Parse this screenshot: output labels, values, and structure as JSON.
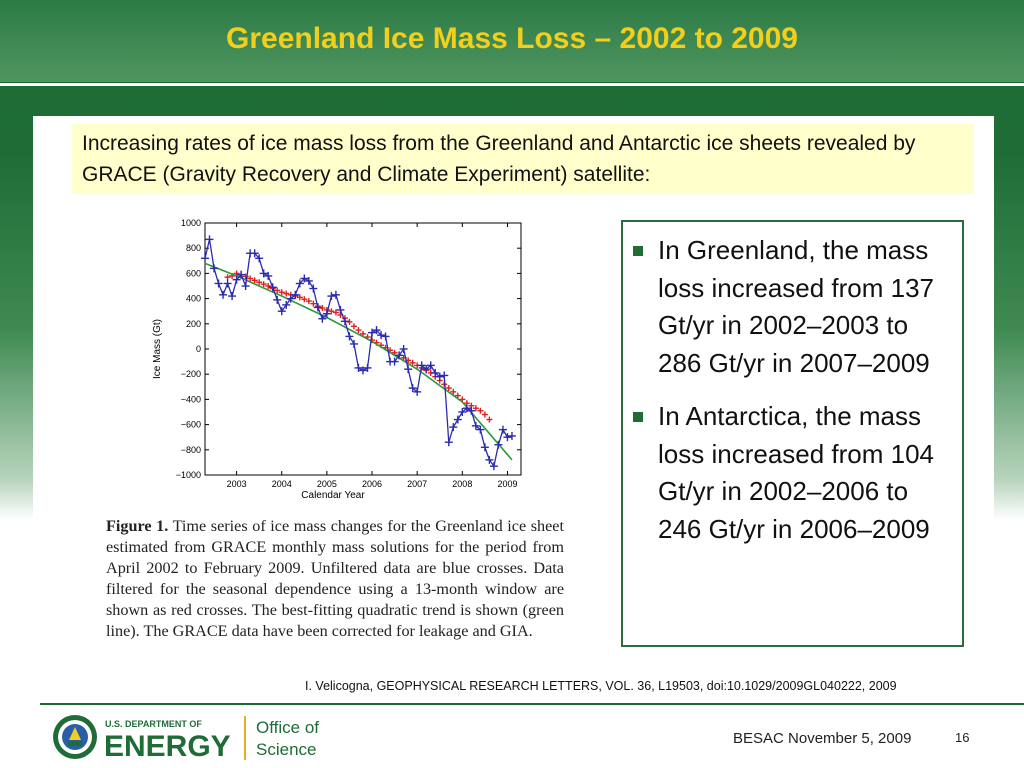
{
  "slide": {
    "title": "Greenland Ice Mass Loss – 2002 to 2009",
    "intro": "Increasing rates of ice mass loss from the Greenland and Antarctic ice sheets revealed by GRACE (Gravity Recovery and Climate Experiment) satellite:",
    "bullets": [
      "In Greenland, the mass loss increased from 137 Gt/yr in 2002–2003 to 286 Gt/yr in 2007–2009",
      "In Antarctica, the mass loss increased from 104 Gt/yr in 2002–2006 to 246 Gt/yr in 2006–2009"
    ],
    "caption_label": "Figure 1.",
    "caption_text": "Time series of ice mass changes for the Greenland ice sheet estimated from GRACE monthly mass solutions for the period from April 2002 to February 2009. Unfiltered data are blue crosses. Data filtered for the seasonal dependence using a 13-month window are shown as red crosses. The best-fitting quadratic trend is shown (green line). The GRACE data have been corrected for leakage and GIA.",
    "citation": "I. Velicogna, GEOPHYSICAL RESEARCH LETTERS, VOL. 36, L19503, doi:10.1029/2009GL040222, 2009"
  },
  "footer": {
    "logo_dept": "U.S. DEPARTMENT OF",
    "logo_energy": "ENERGY",
    "logo_office1": "Office of",
    "logo_office2": "Science",
    "date": "BESAC November 5, 2009",
    "page": "16"
  },
  "colors": {
    "green": "#1f6c37",
    "title_yellow": "#f2cf1c",
    "unfiltered": "#2b2bb0",
    "filtered": "#e02020",
    "trend": "#2a9a3a"
  },
  "chart_data": {
    "type": "line",
    "xlabel": "Calendar Year",
    "ylabel": "Ice Mass (Gt)",
    "xlim": [
      2002.3,
      2009.3
    ],
    "ylim": [
      -1000,
      1000
    ],
    "xticks": [
      2003,
      2004,
      2005,
      2006,
      2007,
      2008,
      2009
    ],
    "yticks": [
      1000,
      800,
      600,
      400,
      200,
      0,
      -200,
      -400,
      -600,
      -800,
      -1000
    ],
    "ytick_labels": [
      "1000",
      "800",
      "600",
      "400",
      "200",
      "0",
      "−200",
      "−400",
      "−600",
      "−800",
      "−1000"
    ],
    "series": [
      {
        "style": "blue-crosses",
        "x": [
          2002.3,
          2002.4,
          2002.5,
          2002.6,
          2002.7,
          2002.8,
          2002.9,
          2003.0,
          2003.1,
          2003.2,
          2003.3,
          2003.4,
          2003.5,
          2003.6,
          2003.7,
          2003.8,
          2003.9,
          2004.0,
          2004.1,
          2004.2,
          2004.3,
          2004.4,
          2004.5,
          2004.6,
          2004.7,
          2004.8,
          2004.9,
          2005.0,
          2005.1,
          2005.2,
          2005.3,
          2005.4,
          2005.5,
          2005.6,
          2005.7,
          2005.8,
          2005.9,
          2006.0,
          2006.1,
          2006.2,
          2006.3,
          2006.4,
          2006.5,
          2006.6,
          2006.7,
          2006.8,
          2006.9,
          2007.0,
          2007.1,
          2007.2,
          2007.3,
          2007.4,
          2007.5,
          2007.6,
          2007.7,
          2007.8,
          2007.9,
          2008.0,
          2008.1,
          2008.2,
          2008.3,
          2008.4,
          2008.5,
          2008.6,
          2008.7,
          2008.8,
          2008.9,
          2009.0,
          2009.1
        ],
        "values": [
          720,
          870,
          640,
          520,
          430,
          520,
          420,
          550,
          590,
          500,
          760,
          760,
          720,
          600,
          580,
          490,
          390,
          300,
          350,
          400,
          430,
          520,
          560,
          540,
          480,
          330,
          240,
          280,
          420,
          430,
          310,
          220,
          100,
          40,
          -150,
          -170,
          -150,
          130,
          150,
          110,
          100,
          -100,
          -100,
          -50,
          0,
          -160,
          -310,
          -340,
          -130,
          -160,
          -130,
          -190,
          -220,
          -210,
          -740,
          -620,
          -560,
          -500,
          -470,
          -490,
          -610,
          -640,
          -780,
          -880,
          -930,
          -760,
          -640,
          -700,
          -690
        ]
      },
      {
        "style": "red-crosses",
        "x": [
          2002.8,
          2002.9,
          2003.0,
          2003.1,
          2003.2,
          2003.3,
          2003.4,
          2003.5,
          2003.6,
          2003.7,
          2003.8,
          2003.9,
          2004.0,
          2004.1,
          2004.2,
          2004.3,
          2004.4,
          2004.5,
          2004.6,
          2004.7,
          2004.8,
          2004.9,
          2005.0,
          2005.1,
          2005.2,
          2005.3,
          2005.4,
          2005.5,
          2005.6,
          2005.7,
          2005.8,
          2005.9,
          2006.0,
          2006.1,
          2006.2,
          2006.3,
          2006.4,
          2006.5,
          2006.6,
          2006.7,
          2006.8,
          2006.9,
          2007.0,
          2007.1,
          2007.2,
          2007.3,
          2007.4,
          2007.5,
          2007.6,
          2007.7,
          2007.8,
          2007.9,
          2008.0,
          2008.1,
          2008.2,
          2008.3,
          2008.4,
          2008.5,
          2008.6
        ],
        "values": [
          570,
          580,
          600,
          590,
          575,
          560,
          545,
          530,
          515,
          500,
          480,
          465,
          450,
          440,
          430,
          420,
          410,
          395,
          380,
          360,
          340,
          325,
          310,
          300,
          290,
          270,
          245,
          215,
          180,
          150,
          120,
          95,
          70,
          50,
          30,
          10,
          -10,
          -30,
          -50,
          -70,
          -90,
          -110,
          -130,
          -150,
          -170,
          -190,
          -220,
          -250,
          -280,
          -310,
          -340,
          -370,
          -400,
          -430,
          -450,
          -470,
          -490,
          -520,
          -560
        ]
      },
      {
        "style": "green-line",
        "x": [
          2002.3,
          2003.0,
          2004.0,
          2005.0,
          2006.0,
          2007.0,
          2008.0,
          2009.1
        ],
        "values": [
          680,
          580,
          420,
          250,
          60,
          -160,
          -420,
          -880
        ]
      }
    ]
  }
}
